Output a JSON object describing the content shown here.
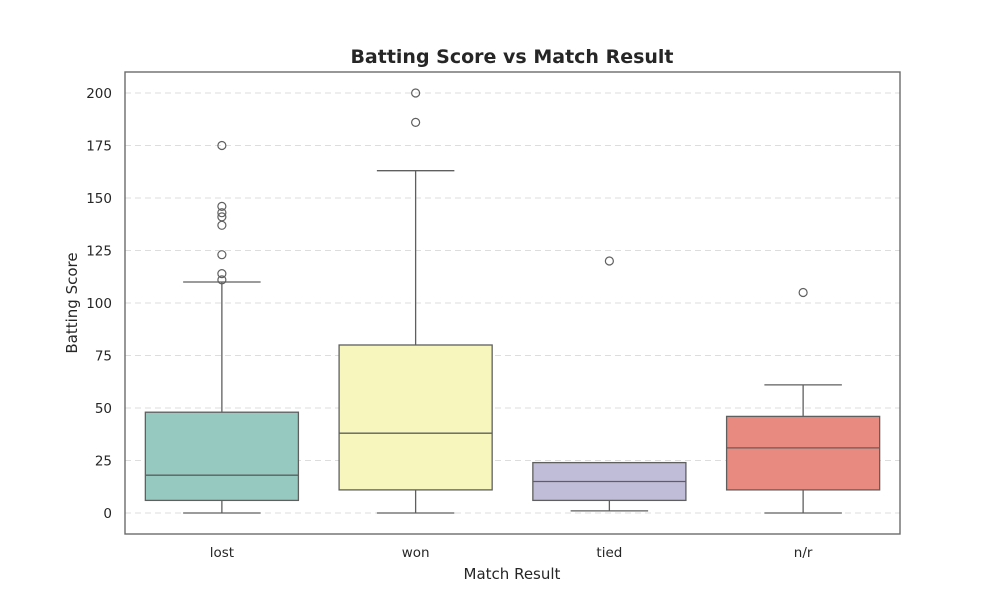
{
  "chart_data": {
    "type": "box",
    "title": "Batting Score vs Match Result",
    "xlabel": "Match Result",
    "ylabel": "Batting Score",
    "ylim": [
      -10,
      210
    ],
    "yticks": [
      0,
      25,
      50,
      75,
      100,
      125,
      150,
      175,
      200
    ],
    "grid": true,
    "categories": [
      "lost",
      "won",
      "tied",
      "n/r"
    ],
    "boxes": [
      {
        "category": "lost",
        "color": "#96cac0",
        "whisker_low": 0,
        "q1": 6,
        "median": 18,
        "q3": 48,
        "whisker_high": 110,
        "outliers": [
          111,
          114,
          123,
          137,
          141,
          143,
          146,
          175
        ]
      },
      {
        "category": "won",
        "color": "#f7f7bd",
        "whisker_low": 0,
        "q1": 11,
        "median": 38,
        "q3": 80,
        "whisker_high": 163,
        "outliers": [
          186,
          200
        ]
      },
      {
        "category": "tied",
        "color": "#c0bdd8",
        "whisker_low": 1,
        "q1": 6,
        "median": 15,
        "q3": 24,
        "whisker_high": 24,
        "outliers": [
          120
        ]
      },
      {
        "category": "n/r",
        "color": "#e98a81",
        "whisker_low": 0,
        "q1": 11,
        "median": 31,
        "q3": 46,
        "whisker_high": 61,
        "outliers": [
          105
        ]
      }
    ]
  }
}
